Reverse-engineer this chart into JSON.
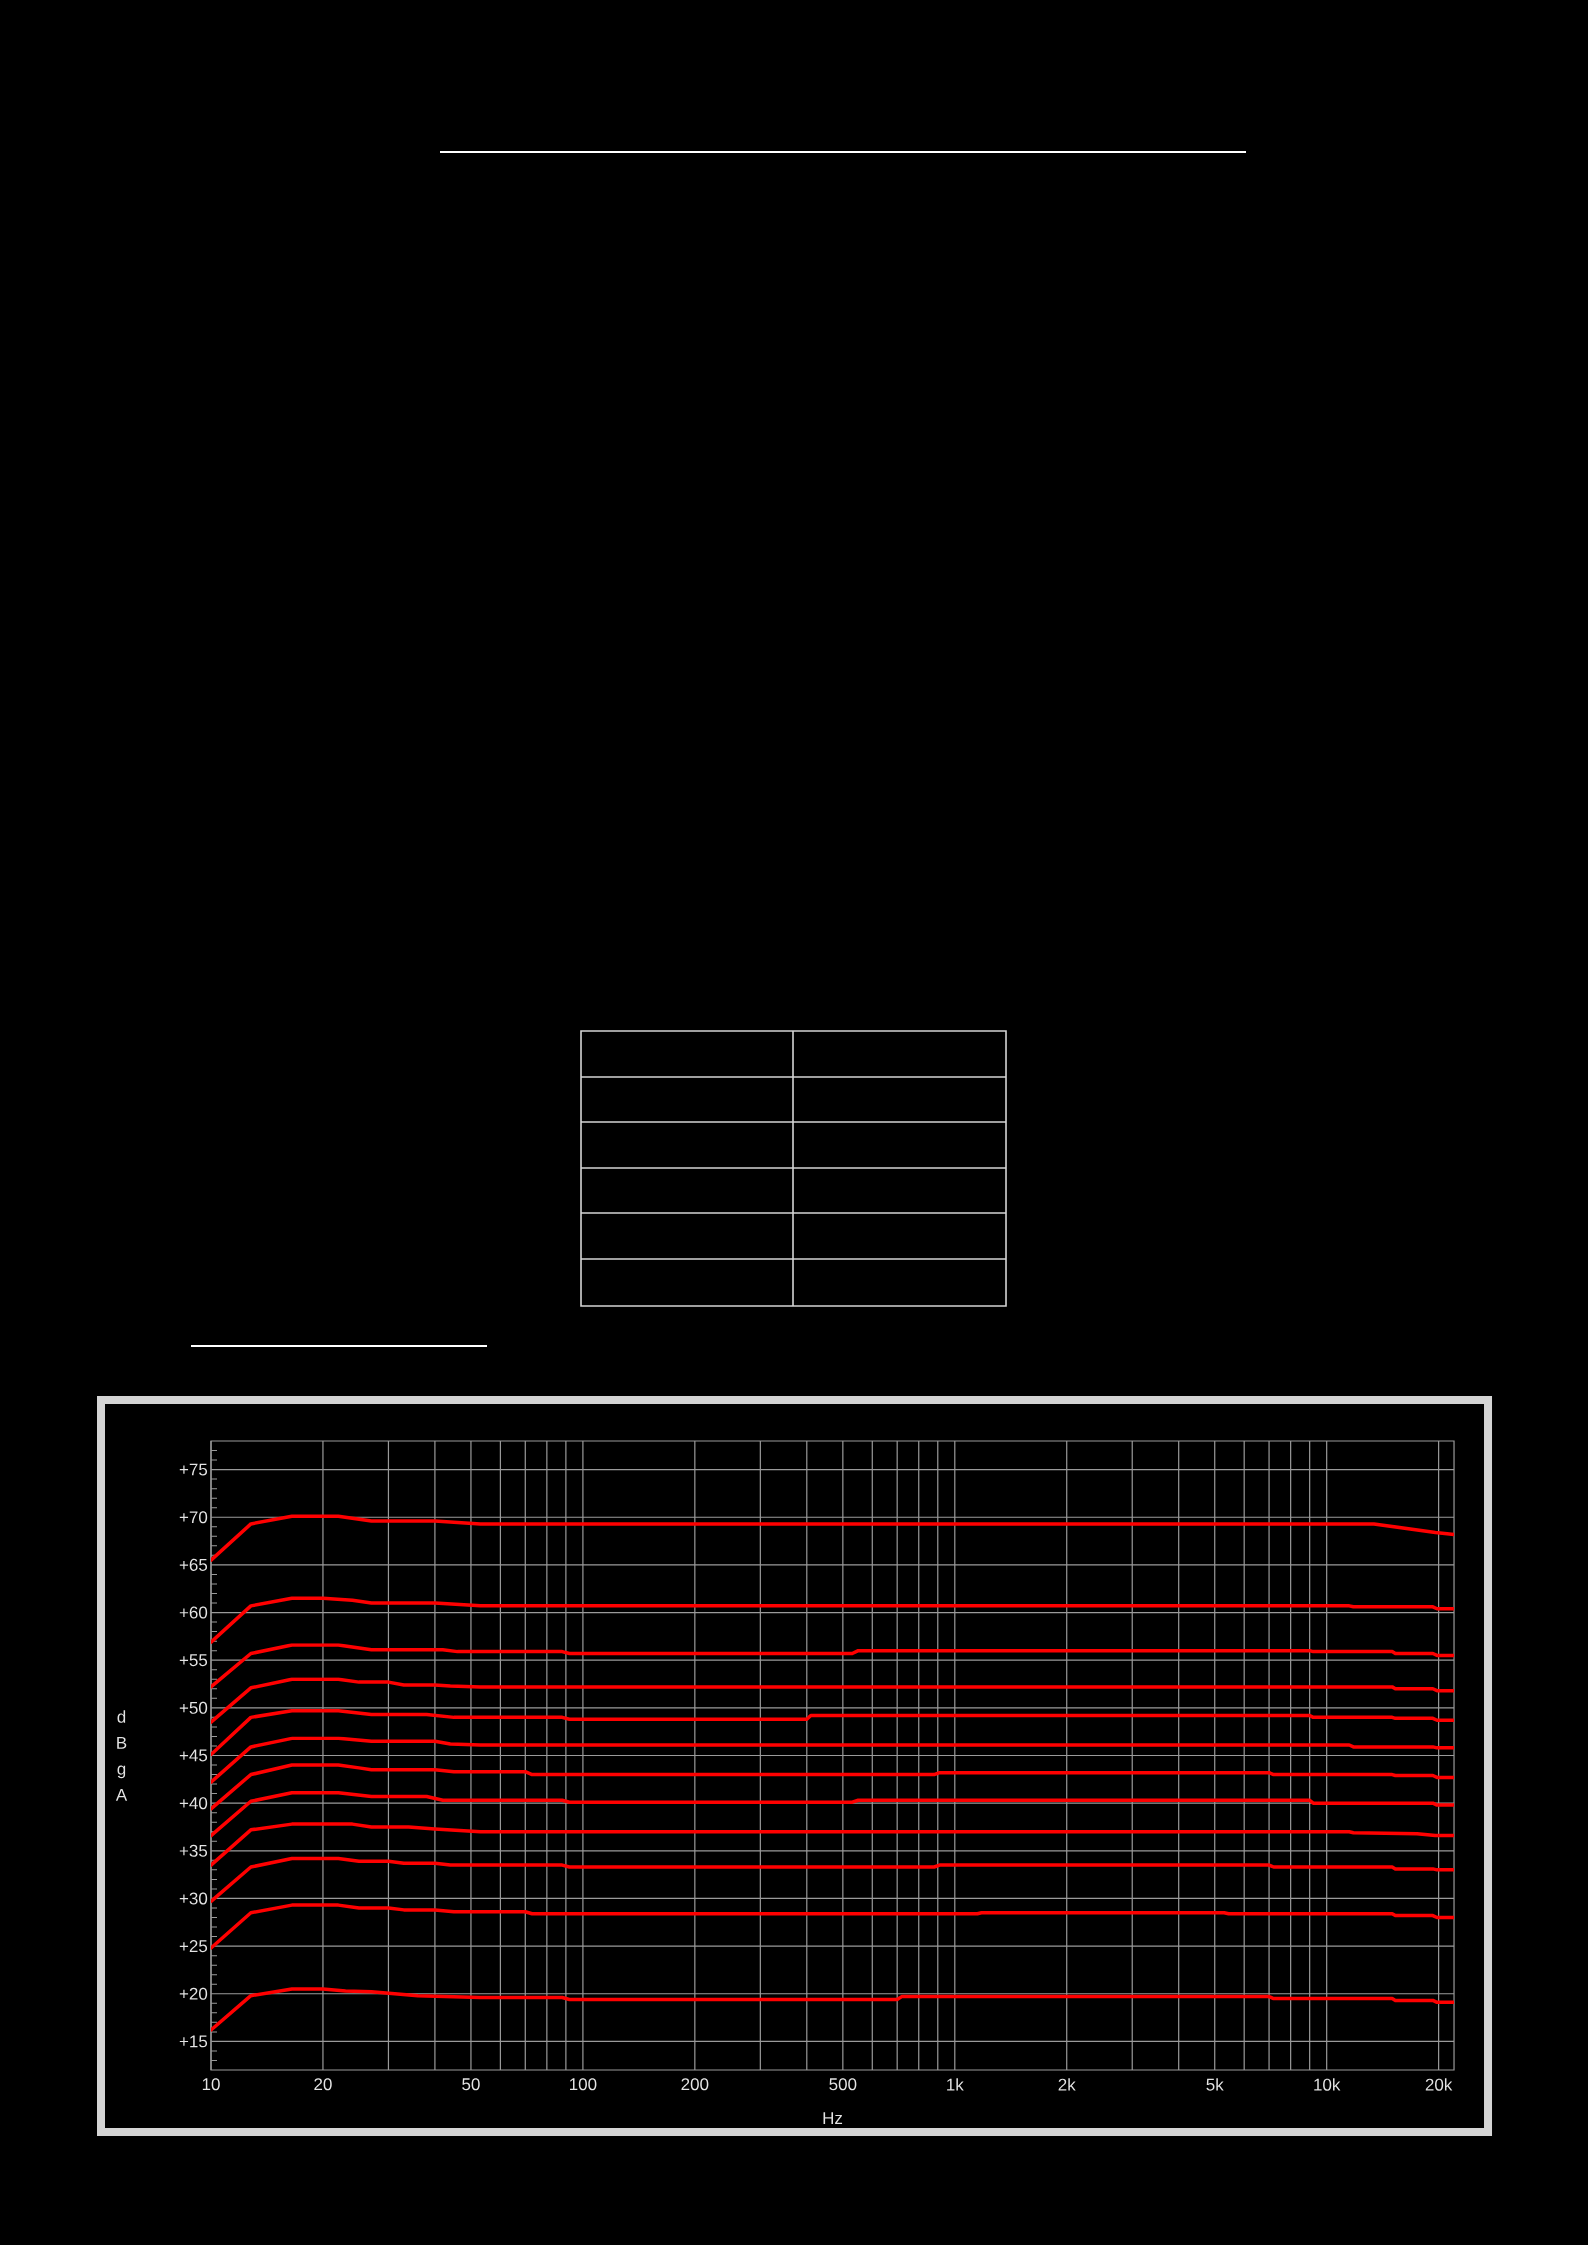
{
  "chart_data": {
    "type": "line",
    "xlabel": "Hz",
    "ylabel": "dBg A",
    "log": "x",
    "grid": true,
    "xlim": [
      10,
      22000
    ],
    "ylim": [
      12,
      78
    ],
    "xticks": [
      10,
      20,
      {
        "value": 30,
        "label": null
      },
      {
        "value": 40,
        "label": null
      },
      50,
      {
        "value": 60,
        "label": null
      },
      {
        "value": 70,
        "label": null
      },
      {
        "value": 80,
        "label": null
      },
      {
        "value": 90,
        "label": null
      },
      100,
      200,
      {
        "value": 300,
        "label": null
      },
      {
        "value": 400,
        "label": null
      },
      500,
      {
        "value": 600,
        "label": null
      },
      {
        "value": 700,
        "label": null
      },
      {
        "value": 800,
        "label": null
      },
      {
        "value": 900,
        "label": null
      },
      {
        "value": 1000,
        "label": "1k"
      },
      {
        "value": 2000,
        "label": "2k"
      },
      {
        "value": 3000,
        "label": null
      },
      {
        "value": 4000,
        "label": null
      },
      {
        "value": 5000,
        "label": "5k"
      },
      {
        "value": 6000,
        "label": null
      },
      {
        "value": 7000,
        "label": null
      },
      {
        "value": 8000,
        "label": null
      },
      {
        "value": 9000,
        "label": null
      },
      {
        "value": 10000,
        "label": "10k"
      },
      {
        "value": 20000,
        "label": "20k"
      }
    ],
    "yticks": [
      {
        "value": 13,
        "label": null
      },
      {
        "value": 14,
        "label": null
      },
      {
        "value": 15,
        "label": "+15"
      },
      {
        "value": 16,
        "label": null
      },
      {
        "value": 17,
        "label": null
      },
      {
        "value": 18,
        "label": null
      },
      {
        "value": 19,
        "label": null
      },
      {
        "value": 20,
        "label": "+20"
      },
      {
        "value": 21,
        "label": null
      },
      {
        "value": 22,
        "label": null
      },
      {
        "value": 23,
        "label": null
      },
      {
        "value": 24,
        "label": null
      },
      {
        "value": 25,
        "label": "+25"
      },
      {
        "value": 26,
        "label": null
      },
      {
        "value": 27,
        "label": null
      },
      {
        "value": 28,
        "label": null
      },
      {
        "value": 29,
        "label": null
      },
      {
        "value": 30,
        "label": "+30"
      },
      {
        "value": 31,
        "label": null
      },
      {
        "value": 32,
        "label": null
      },
      {
        "value": 33,
        "label": null
      },
      {
        "value": 34,
        "label": null
      },
      {
        "value": 35,
        "label": "+35"
      },
      {
        "value": 36,
        "label": null
      },
      {
        "value": 37,
        "label": null
      },
      {
        "value": 38,
        "label": null
      },
      {
        "value": 39,
        "label": null
      },
      {
        "value": 40,
        "label": "+40"
      },
      {
        "value": 41,
        "label": null
      },
      {
        "value": 42,
        "label": null
      },
      {
        "value": 43,
        "label": null
      },
      {
        "value": 44,
        "label": null
      },
      {
        "value": 45,
        "label": "+45"
      },
      {
        "value": 46,
        "label": null
      },
      {
        "value": 47,
        "label": null
      },
      {
        "value": 48,
        "label": null
      },
      {
        "value": 49,
        "label": null
      },
      {
        "value": 50,
        "label": "+50"
      },
      {
        "value": 51,
        "label": null
      },
      {
        "value": 52,
        "label": null
      },
      {
        "value": 53,
        "label": null
      },
      {
        "value": 54,
        "label": null
      },
      {
        "value": 55,
        "label": "+55"
      },
      {
        "value": 56,
        "label": null
      },
      {
        "value": 57,
        "label": null
      },
      {
        "value": 58,
        "label": null
      },
      {
        "value": 59,
        "label": null
      },
      {
        "value": 60,
        "label": "+60"
      },
      {
        "value": 61,
        "label": null
      },
      {
        "value": 62,
        "label": null
      },
      {
        "value": 63,
        "label": null
      },
      {
        "value": 64,
        "label": null
      },
      {
        "value": 65,
        "label": "+65"
      },
      {
        "value": 66,
        "label": null
      },
      {
        "value": 67,
        "label": null
      },
      {
        "value": 68,
        "label": null
      },
      {
        "value": 69,
        "label": null
      },
      {
        "value": 70,
        "label": "+70"
      },
      {
        "value": 71,
        "label": null
      },
      {
        "value": 72,
        "label": null
      },
      {
        "value": 73,
        "label": null
      },
      {
        "value": 74,
        "label": null
      },
      {
        "value": 75,
        "label": "+75"
      },
      {
        "value": 76,
        "label": null
      },
      {
        "value": 77,
        "label": null
      }
    ],
    "series": [
      {
        "color": "#ff0000",
        "x": [
          10,
          12.8,
          16.5,
          22,
          27,
          40,
          53,
          13400,
          19600,
          22000
        ],
        "values": [
          65.5,
          69.3,
          70.1,
          70.1,
          69.6,
          69.6,
          69.3,
          69.3,
          68.4,
          68.2
        ]
      },
      {
        "color": "#ff0000",
        "x": [
          10,
          12.8,
          16.5,
          20,
          24,
          27,
          40,
          53,
          11500,
          11800,
          19300,
          19800,
          22000
        ],
        "values": [
          56.9,
          60.7,
          61.5,
          61.5,
          61.3,
          61.0,
          61.0,
          60.7,
          60.7,
          60.6,
          60.6,
          60.4,
          60.4
        ]
      },
      {
        "color": "#ff0000",
        "x": [
          10,
          12.8,
          16.5,
          22,
          27,
          42,
          46,
          88,
          92,
          530,
          550,
          9000,
          9200,
          15000,
          15300,
          19300,
          19800,
          22000
        ],
        "values": [
          52.2,
          55.7,
          56.6,
          56.6,
          56.1,
          56.1,
          55.9,
          55.9,
          55.7,
          55.7,
          56.0,
          56.0,
          55.9,
          55.9,
          55.7,
          55.7,
          55.5,
          55.5
        ]
      },
      {
        "color": "#ff0000",
        "x": [
          10,
          12.8,
          16.5,
          22,
          25,
          30,
          33,
          40,
          44,
          53,
          15000,
          15300,
          19300,
          19800,
          22000
        ],
        "values": [
          48.5,
          52.1,
          53.0,
          53.0,
          52.7,
          52.7,
          52.4,
          52.4,
          52.3,
          52.2,
          52.2,
          52.0,
          52.0,
          51.8,
          51.8
        ]
      },
      {
        "color": "#ff0000",
        "x": [
          10,
          12.8,
          16.5,
          22,
          27,
          38,
          45,
          88,
          92,
          400,
          410,
          9000,
          9200,
          15000,
          15300,
          19300,
          19800,
          22000
        ],
        "values": [
          45.1,
          49.0,
          49.7,
          49.7,
          49.3,
          49.3,
          49.0,
          49.0,
          48.8,
          48.8,
          49.2,
          49.2,
          49.0,
          49.0,
          48.9,
          48.9,
          48.7,
          48.7
        ]
      },
      {
        "color": "#ff0000",
        "x": [
          10,
          12.8,
          16.5,
          22,
          27,
          40,
          44,
          53,
          11500,
          11800,
          19300,
          19800,
          22000
        ],
        "values": [
          42.2,
          45.9,
          46.8,
          46.8,
          46.5,
          46.5,
          46.2,
          46.1,
          46.1,
          45.9,
          45.9,
          45.8,
          45.8
        ]
      },
      {
        "color": "#ff0000",
        "x": [
          10,
          12.8,
          16.5,
          22,
          25,
          27,
          40,
          45,
          70,
          73,
          880,
          910,
          7000,
          7200,
          15000,
          15300,
          19300,
          19800,
          22000
        ],
        "values": [
          39.4,
          43.0,
          44.0,
          44.0,
          43.7,
          43.5,
          43.5,
          43.3,
          43.3,
          43.0,
          43.0,
          43.2,
          43.2,
          43.0,
          43.0,
          42.9,
          42.9,
          42.7,
          42.7
        ]
      },
      {
        "color": "#ff0000",
        "x": [
          10,
          12.8,
          16.5,
          22,
          27,
          38,
          42,
          88,
          92,
          530,
          550,
          9000,
          9200,
          19300,
          19800,
          22000
        ],
        "values": [
          36.6,
          40.2,
          41.1,
          41.1,
          40.7,
          40.7,
          40.3,
          40.3,
          40.1,
          40.1,
          40.3,
          40.3,
          40.0,
          40.0,
          39.8,
          39.8
        ]
      },
      {
        "color": "#ff0000",
        "x": [
          10,
          12.8,
          16.5,
          24,
          27,
          34,
          40,
          53,
          11500,
          11800,
          17500,
          19600,
          22000
        ],
        "values": [
          33.5,
          37.2,
          37.8,
          37.8,
          37.5,
          37.5,
          37.3,
          37.0,
          37.0,
          36.9,
          36.8,
          36.6,
          36.6
        ]
      },
      {
        "color": "#ff0000",
        "x": [
          10,
          12.8,
          16.5,
          22,
          25,
          30,
          33,
          40,
          44,
          88,
          92,
          880,
          910,
          7000,
          7200,
          15000,
          15300,
          19300,
          19800,
          22000
        ],
        "values": [
          29.7,
          33.3,
          34.2,
          34.2,
          33.9,
          33.9,
          33.7,
          33.7,
          33.5,
          33.5,
          33.3,
          33.3,
          33.5,
          33.5,
          33.3,
          33.3,
          33.1,
          33.1,
          33.0,
          33.0
        ]
      },
      {
        "color": "#ff0000",
        "x": [
          10,
          12.8,
          16.5,
          22,
          25,
          30,
          33,
          40,
          45,
          70,
          73,
          1150,
          1180,
          5300,
          5450,
          15000,
          15300,
          19300,
          19800,
          22000
        ],
        "values": [
          24.8,
          28.5,
          29.3,
          29.3,
          29.0,
          29.0,
          28.8,
          28.8,
          28.6,
          28.6,
          28.4,
          28.4,
          28.5,
          28.5,
          28.4,
          28.4,
          28.2,
          28.2,
          28.0,
          28.0
        ]
      },
      {
        "color": "#ff0000",
        "x": [
          10,
          12.8,
          16.5,
          20,
          23,
          27,
          36,
          53,
          88,
          92,
          700,
          720,
          7000,
          7200,
          15000,
          15300,
          19300,
          19800,
          22000
        ],
        "values": [
          16.2,
          19.8,
          20.5,
          20.5,
          20.3,
          20.2,
          19.8,
          19.6,
          19.6,
          19.4,
          19.4,
          19.7,
          19.7,
          19.5,
          19.5,
          19.3,
          19.3,
          19.1,
          19.1
        ]
      }
    ]
  }
}
